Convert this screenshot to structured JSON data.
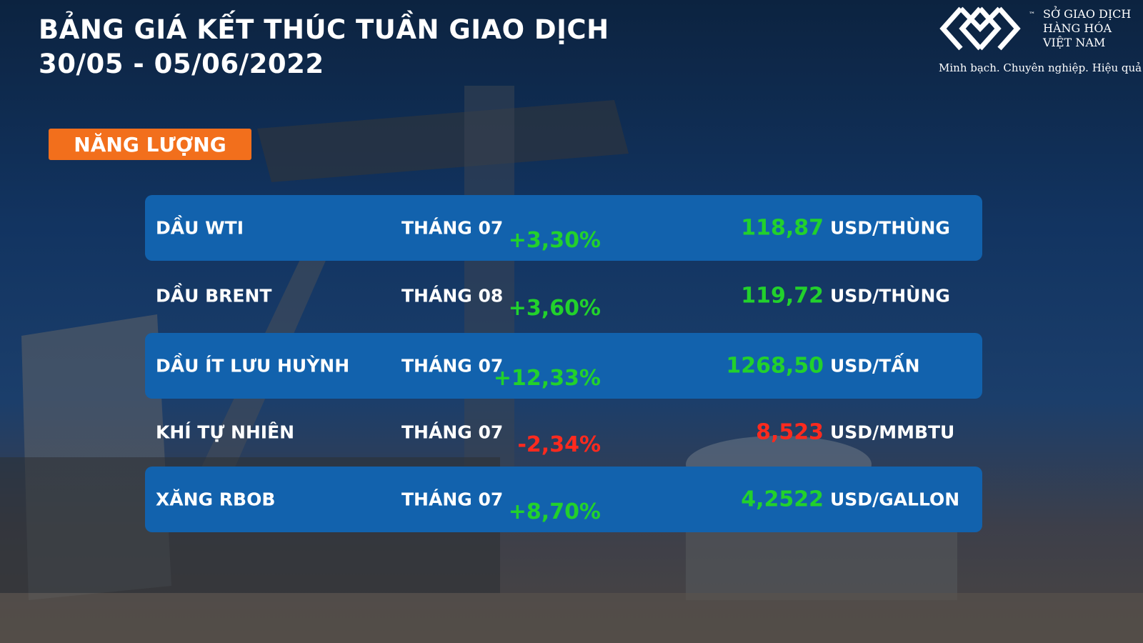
{
  "header": {
    "title": "BẢNG GIÁ KẾT THÚC TUẦN GIAO DỊCH",
    "date_range": "30/05 - 05/06/2022"
  },
  "logo": {
    "lines": [
      "SỞ GIAO DỊCH",
      "HÀNG HÓA",
      "VIỆT NAM"
    ],
    "trademark": "™",
    "tagline": "Minh bạch. Chuyên nghiệp. Hiệu quả"
  },
  "section": "NĂNG LƯỢNG",
  "table": {
    "rows": [
      [
        "DẦU WTI",
        "THÁNG 07",
        "+3,30%",
        "118,87",
        "USD/THÙNG"
      ],
      [
        "DẦU BRENT",
        "THÁNG 08",
        "+3,60%",
        "119,72",
        "USD/THÙNG"
      ],
      [
        "DẦU ÍT LƯU HUỲNH",
        "THÁNG 07",
        "+12,33%",
        "1268,50",
        "USD/TẤN"
      ],
      [
        "KHÍ TỰ NHIÊN",
        "THÁNG 07",
        "-2,34%",
        "8,523",
        "USD/MMBTU"
      ],
      [
        "XĂNG RBOB",
        "THÁNG 07",
        "+8,70%",
        "4,2522",
        "USD/GALLON"
      ]
    ]
  }
}
